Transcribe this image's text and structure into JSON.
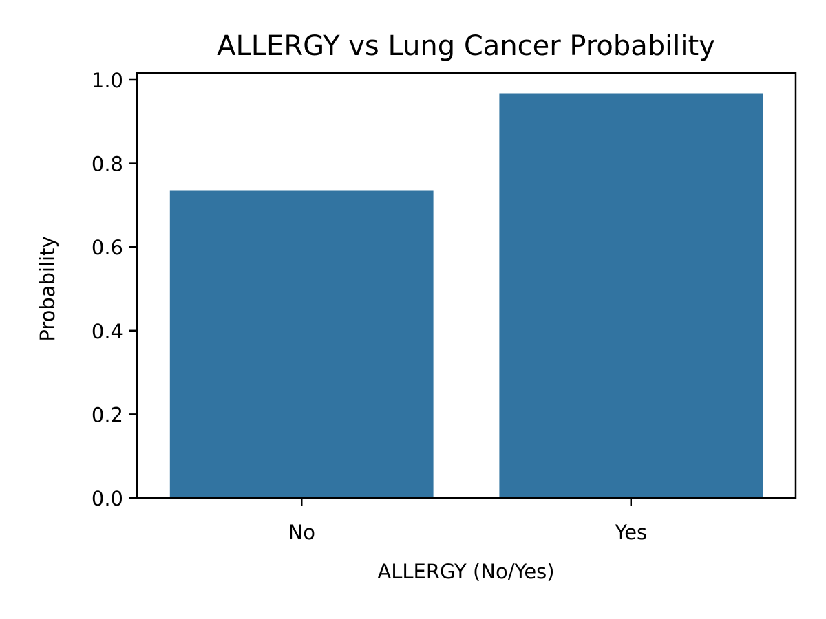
{
  "chart_data": {
    "type": "bar",
    "title": "ALLERGY vs Lung Cancer Probability",
    "xlabel": "ALLERGY (No/Yes)",
    "ylabel": "Probability",
    "categories": [
      "No",
      "Yes"
    ],
    "values": [
      0.736,
      0.968
    ],
    "ylim": [
      0,
      1.0
    ],
    "yticks": [
      "0.0",
      "0.2",
      "0.4",
      "0.6",
      "0.8",
      "1.0"
    ],
    "grid": false,
    "legend": "none",
    "bar_color": "#3274a1"
  }
}
